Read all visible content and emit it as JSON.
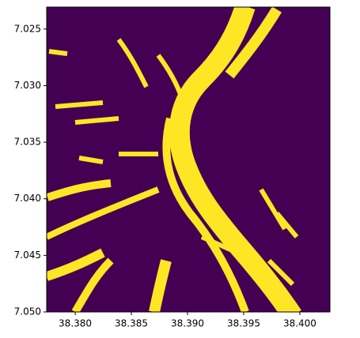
{
  "chart_data": {
    "type": "image",
    "colors": [
      "#440154",
      "#fde725"
    ],
    "xlim": [
      38.37746,
      38.40268
    ],
    "ylim": [
      7.05,
      7.02306
    ],
    "xticks": [
      {
        "value": 38.38,
        "label": "38.380"
      },
      {
        "value": 38.385,
        "label": "38.385"
      },
      {
        "value": 38.39,
        "label": "38.390"
      },
      {
        "value": 38.395,
        "label": "38.395"
      },
      {
        "value": 38.4,
        "label": "38.400"
      }
    ],
    "yticks": [
      7.025,
      {
        "value": 7.03,
        "label": "7.030"
      },
      7.035,
      {
        "value": 7.04,
        "label": "7.040"
      },
      7.045,
      {
        "value": 7.05,
        "label": "7.050"
      }
    ]
  }
}
